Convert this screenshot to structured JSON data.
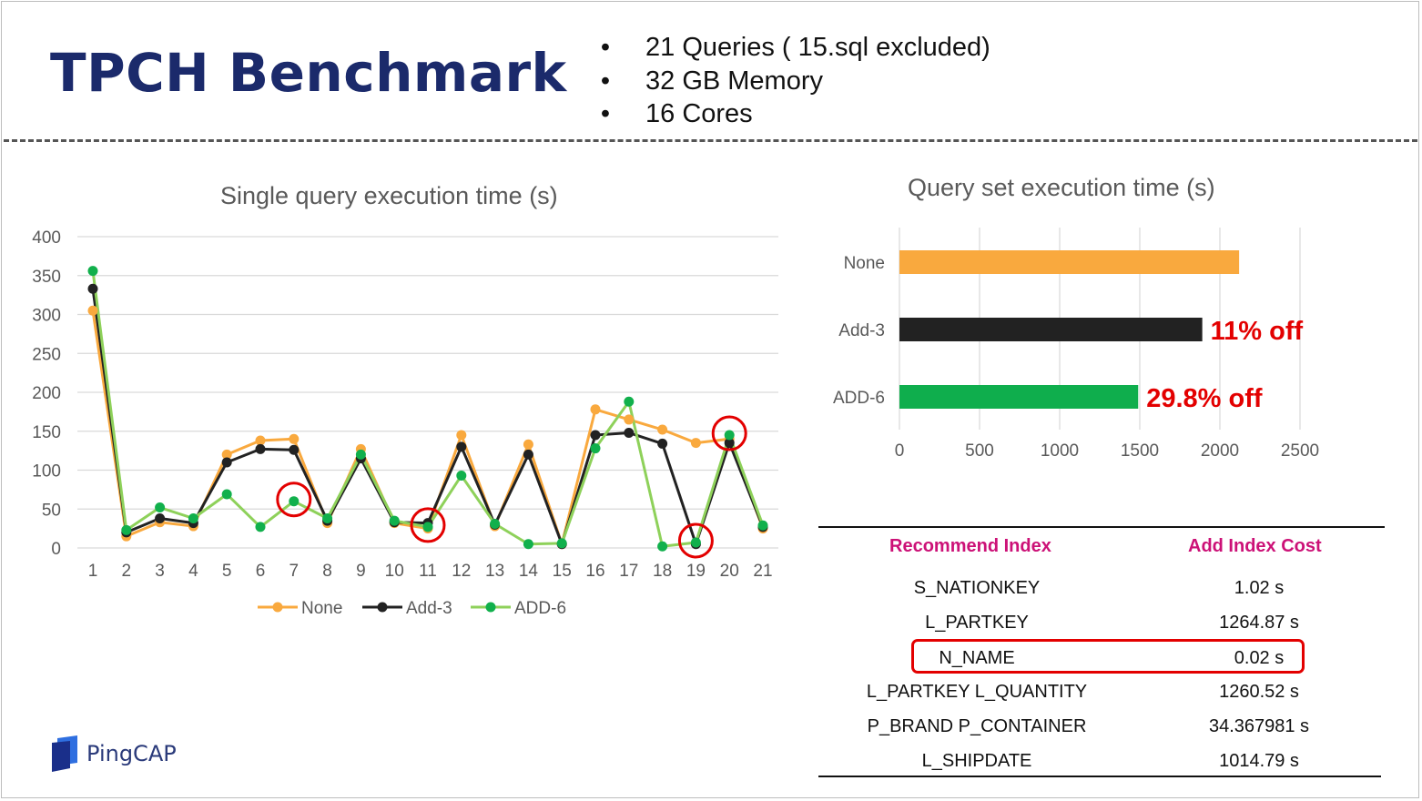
{
  "slide": {
    "title": "TPCH Benchmark",
    "bullets": [
      "21 Queries ( 15.sql excluded)",
      "32 GB Memory",
      "16 Cores"
    ]
  },
  "colors": {
    "None": "#f9a93e",
    "Add-3": "#222222",
    "ADD-6": "#8ed15a",
    "ADD-6-marker": "#11b04c",
    "ADD-6-bar": "#0fae4d",
    "highlight": "#e30000"
  },
  "chart_data": [
    {
      "type": "line",
      "title": "Single query execution time (s)",
      "x": [
        1,
        2,
        3,
        4,
        5,
        6,
        7,
        8,
        9,
        10,
        11,
        12,
        13,
        14,
        15,
        16,
        17,
        18,
        19,
        20,
        21
      ],
      "ylim": [
        0,
        400
      ],
      "yticks": [
        0,
        50,
        100,
        150,
        200,
        250,
        300,
        350,
        400
      ],
      "grid": true,
      "legend_position": "bottom",
      "series": [
        {
          "name": "None",
          "values": [
            305,
            15,
            33,
            28,
            120,
            138,
            140,
            32,
            127,
            32,
            25,
            145,
            28,
            133,
            5,
            178,
            165,
            152,
            135,
            140,
            25
          ]
        },
        {
          "name": "Add-3",
          "values": [
            333,
            20,
            38,
            32,
            110,
            127,
            126,
            35,
            115,
            33,
            32,
            130,
            30,
            120,
            5,
            145,
            148,
            134,
            5,
            135,
            27
          ]
        },
        {
          "name": "ADD-6",
          "values": [
            356,
            23,
            52,
            38,
            69,
            27,
            60,
            38,
            120,
            35,
            27,
            93,
            31,
            5,
            6,
            128,
            188,
            2,
            7,
            145,
            29
          ]
        }
      ],
      "annotations": [
        {
          "type": "circle",
          "x": 7,
          "series": "ADD-6"
        },
        {
          "type": "circle",
          "x": 11,
          "series": "ADD-6"
        },
        {
          "type": "circle",
          "x": 19,
          "series": "ADD-6"
        },
        {
          "type": "circle",
          "x": 20,
          "series": "ADD-6"
        }
      ]
    },
    {
      "type": "bar",
      "orientation": "horizontal",
      "title": "Query set execution time (s)",
      "categories": [
        "None",
        "Add-3",
        "ADD-6"
      ],
      "values": [
        2120,
        1890,
        1490
      ],
      "xlim": [
        0,
        2500
      ],
      "xticks": [
        0,
        500,
        1000,
        1500,
        2000,
        2500
      ],
      "grid": true,
      "data_labels": [
        "",
        "11% off",
        "29.8% off"
      ]
    }
  ],
  "index_table": {
    "headers": [
      "Recommend Index",
      "Add Index Cost"
    ],
    "rows": [
      {
        "index": "S_NATIONKEY",
        "cost": "1.02 s"
      },
      {
        "index": "L_PARTKEY",
        "cost": "1264.87 s"
      },
      {
        "index": "N_NAME",
        "cost": "0.02 s",
        "highlighted": true
      },
      {
        "index": "L_PARTKEY L_QUANTITY",
        "cost": "1260.52 s"
      },
      {
        "index": "P_BRAND P_CONTAINER",
        "cost": "34.367981 s"
      },
      {
        "index": "L_SHIPDATE",
        "cost": "1014.79 s"
      }
    ]
  },
  "brand": {
    "name": "PingCAP",
    "logo_icon": "pingcap-logo-icon"
  }
}
